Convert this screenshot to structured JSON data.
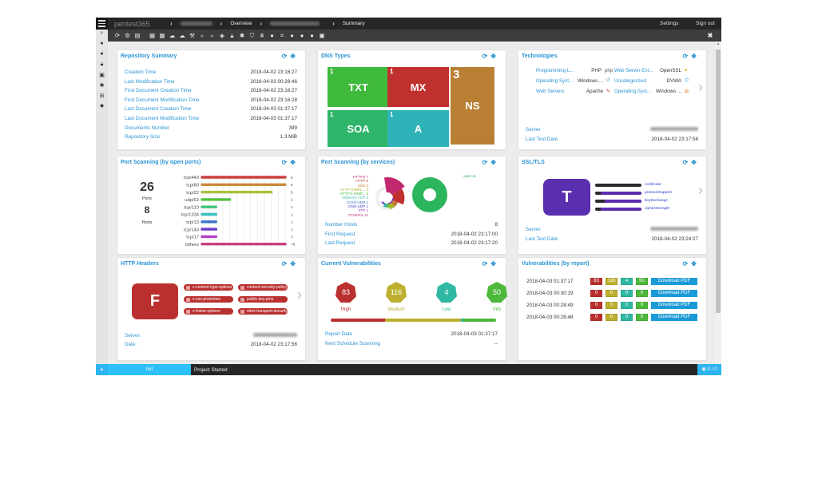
{
  "header": {
    "logo": "pentest365",
    "crumbs": [
      "Overview",
      "Summary"
    ],
    "settings": "Settings",
    "signout": "Sign out"
  },
  "toolbar_icons": [
    "refresh-icon",
    "gear-icon",
    "database-icon",
    "doc-search-icon",
    "doc-search-icon",
    "cloud-icon",
    "cloud-icon",
    "hammer-icon",
    "search-icon",
    "search-icon",
    "shield-icon",
    "lock-icon",
    "bug-icon",
    "shield-alt-icon",
    "binoculars-icon",
    "globe-icon",
    "crop-icon",
    "globe-icon",
    "globe-icon",
    "globe-icon",
    "inbox-icon"
  ],
  "repo": {
    "title": "Repository Summary",
    "rows": [
      {
        "k": "Creation Time",
        "v": "2018-04-02 23:16:27"
      },
      {
        "k": "Last Modification Time",
        "v": "2018-04-03 00:28:46"
      },
      {
        "k": "First Document Creation Time",
        "v": "2018-04-02 23:16:27"
      },
      {
        "k": "First Document Modification Time",
        "v": "2018-04-02 23:16:28"
      },
      {
        "k": "Last Document Creation Time",
        "v": "2018-04-03 01:37:17"
      },
      {
        "k": "Last Document Modification Time",
        "v": "2018-04-03 01:37:17"
      },
      {
        "k": "Documents Number",
        "v": "399"
      },
      {
        "k": "Repository Size",
        "v": "1.3 MiB"
      }
    ]
  },
  "dns": {
    "title": "DNS Types",
    "cells": [
      {
        "label": "TXT",
        "count": "1",
        "color": "#3fb93b"
      },
      {
        "label": "MX",
        "count": "1",
        "color": "#c0302f"
      },
      {
        "label": "NS",
        "count": "3",
        "color": "#b97f32"
      },
      {
        "label": "SOA",
        "count": "1",
        "color": "#2eb56a"
      },
      {
        "label": "A",
        "count": "1",
        "color": "#2db3b8"
      }
    ]
  },
  "tech": {
    "title": "Technologies",
    "items": [
      {
        "k": "Programming L...",
        "v": "PHP",
        "icon": "php-icon"
      },
      {
        "k": "Web Server Ext...",
        "v": "OpenSSL",
        "icon": "lock-icon"
      },
      {
        "k": "Operating Syst...",
        "v": "Windows ...",
        "icon": "power-icon"
      },
      {
        "k": "Uncategorized",
        "v": "DVWA",
        "icon": "power-icon"
      },
      {
        "k": "Web Servers",
        "v": "Apache",
        "icon": "feather-icon"
      },
      {
        "k": "Operating Syst...",
        "v": "Windows ...",
        "icon": "windows-icon"
      }
    ],
    "server_label": "Server",
    "date_label": "Last Test Date",
    "date": "2018-04-02 23:17:56"
  },
  "ports": {
    "title": "Port Scanning (by open ports)",
    "ports_count": "26",
    "ports_label": "Ports",
    "hosts_count": "8",
    "hosts_label": "Hosts"
  },
  "chart_data": {
    "type": "bar",
    "orientation": "horizontal",
    "categories": [
      "tcp/443",
      "tcp/80",
      "tcp/22",
      "udp/53",
      "tcp/110",
      "tcp/1234",
      "tcp/13",
      "tcp/143",
      "tcp/17",
      "Others"
    ],
    "values": [
      6,
      6,
      5,
      2,
      1,
      1,
      1,
      1,
      1,
      6
    ],
    "value_labels": [
      "6",
      "6",
      "5",
      "2",
      "1",
      "1",
      "1",
      "1",
      "1",
      "+6"
    ],
    "colors": [
      "#c8403f",
      "#c98a3c",
      "#a9c03b",
      "#55c040",
      "#3ec37a",
      "#3bbfc0",
      "#3a72c8",
      "#6a3cc8",
      "#b83fc8",
      "#c83f7e"
    ],
    "xlim": [
      0,
      6
    ]
  },
  "services": {
    "title": "Port Scanning (by services)",
    "legend": [
      {
        "name": "HTTPS",
        "v": "7",
        "color": "#c2286f"
      },
      {
        "name": "HTTP",
        "v": "6",
        "color": "#c0302f"
      },
      {
        "name": "SSH",
        "v": "3",
        "color": "#c27b2f"
      },
      {
        "name": "HTTP-SIMPL...",
        "v": "3",
        "color": "#a7b82f"
      },
      {
        "name": "HTTPS-SIMP...",
        "v": "2",
        "color": "#4cbc3b"
      },
      {
        "name": "NOSATA-TCP",
        "v": "2",
        "color": "#33b4a8"
      },
      {
        "name": "COUCHDB",
        "v": "1",
        "color": "#3474c7"
      },
      {
        "name": "DNS-UDP",
        "v": "1",
        "color": "#4a3cc7"
      },
      {
        "name": "FTP",
        "v": "1",
        "color": "#8a3cc7"
      },
      {
        "name": "OTHERS",
        "v": "13",
        "color": "#c23c7a"
      }
    ],
    "state": {
      "name": "open",
      "v": "41",
      "color": "#2db55d"
    },
    "rows": [
      {
        "k": "Number Hosts",
        "v": "8"
      },
      {
        "k": "First Request",
        "v": "2018-04-02 23:17:00"
      },
      {
        "k": "Last Request",
        "v": "2018-04-02 23:17:20"
      }
    ]
  },
  "ssl": {
    "title": "SSL/TLS",
    "grade": "T",
    "bars": [
      {
        "name": "certificate",
        "fill": 0
      },
      {
        "name": "protocolSupport",
        "fill": 0.88
      },
      {
        "name": "keyExchange",
        "fill": 0.8
      },
      {
        "name": "cipherStrength",
        "fill": 0.88
      }
    ],
    "server_label": "Server",
    "date_label": "Last Test Date",
    "date": "2018-04-02 23:24:27"
  },
  "http": {
    "title": "HTTP Headers",
    "grade": "F",
    "headers": [
      "x-content-type-options",
      "content-security-policy",
      "x-xss-protection",
      "public-key-pins",
      "x-frame-options",
      "strict-transport-security"
    ],
    "server_label": "Server:",
    "date_label": "Date:",
    "date": "2018-04-02 23:17:56"
  },
  "vulns": {
    "title": "Current Vulnerabilities",
    "items": [
      {
        "label": "High",
        "v": "83",
        "color": "#b9302f"
      },
      {
        "label": "Medium",
        "v": "116",
        "color": "#bcb02e"
      },
      {
        "label": "Low",
        "v": "4",
        "color": "#2fb8a2"
      },
      {
        "label": "Info",
        "v": "50",
        "color": "#4db83a"
      }
    ],
    "rows": [
      {
        "k": "Report Date",
        "v": "2018-04-03 01:37:17"
      },
      {
        "k": "Next Schedule Scanning",
        "v": "--"
      }
    ]
  },
  "reports": {
    "title": "Vulnerabilities (by report)",
    "pdf": "Download PDF",
    "rows": [
      {
        "date": "2018-04-03 01:37:17",
        "c": [
          "83",
          "116",
          "4",
          "50"
        ]
      },
      {
        "date": "2018-04-03 00:30:19",
        "c": [
          "0",
          "0",
          "0",
          "0"
        ]
      },
      {
        "date": "2018-04-03 00:28:49",
        "c": [
          "0",
          "0",
          "0",
          "0"
        ]
      },
      {
        "date": "2018-04-03 00:28:48",
        "c": [
          "0",
          "0",
          "0",
          "0"
        ]
      }
    ]
  },
  "status": {
    "init": "Init",
    "message": "Project Started",
    "count": "0 / 0"
  }
}
